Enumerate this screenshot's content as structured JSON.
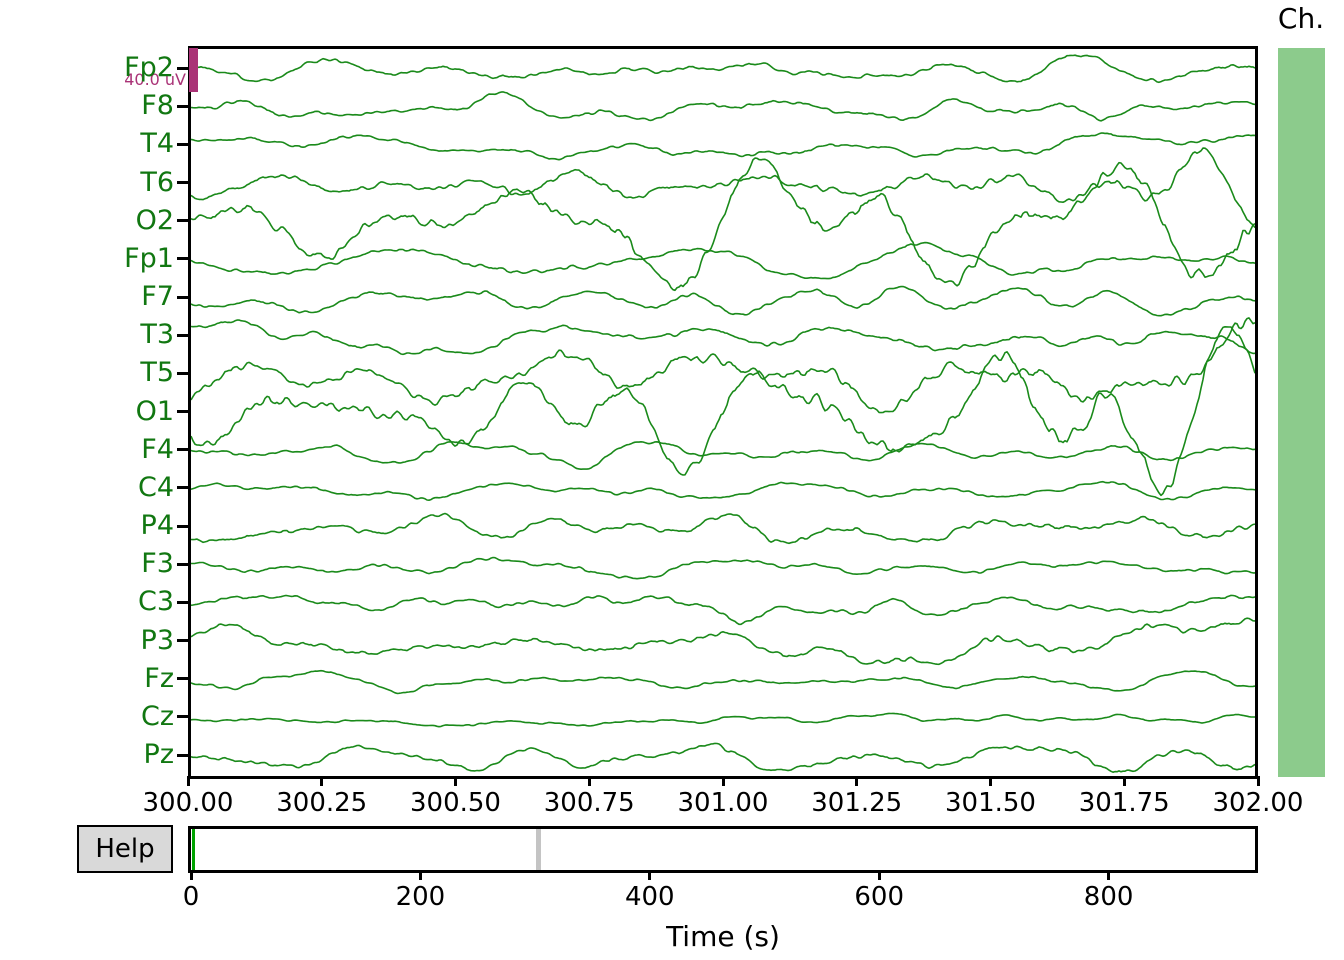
{
  "window": {
    "help_button_label": "Help",
    "channel_scrollbar_label": "Ch."
  },
  "scalebar": {
    "label": "40.0 uV",
    "color": "#AA3377"
  },
  "colors": {
    "trace": "#1a8a1a",
    "channel_label": "#117711",
    "axis": "#000000",
    "vscrollbar_fill": "#8ccb8c",
    "hscroll_marker": "#c4c4c4",
    "hscroll_position_line": "#00a300",
    "help_fill": "#d9d9d9"
  },
  "time_axis": {
    "tick_labels": [
      "300.00",
      "300.25",
      "300.50",
      "300.75",
      "301.00",
      "301.25",
      "301.50",
      "301.75",
      "302.00"
    ],
    "window_start_s": 300.0,
    "window_end_s": 302.0
  },
  "overview_axis": {
    "tick_labels": [
      "0",
      "200",
      "400",
      "600",
      "800"
    ],
    "tick_values": [
      0,
      200,
      400,
      600,
      800
    ],
    "xlabel": "Time (s)",
    "total_duration_s": 925,
    "marker_time_s": 301,
    "view_start_line_time_s": 0
  },
  "chart_data": {
    "type": "line",
    "title": "",
    "x_range_s": [
      300.0,
      302.0
    ],
    "sensitivity": "40.0 uV",
    "channels": [
      {
        "name": "Fp2",
        "amp": 9,
        "rhythm": 2,
        "rhythm_hz": 9,
        "swell": 0
      },
      {
        "name": "F8",
        "amp": 8,
        "rhythm": 2,
        "rhythm_hz": 9,
        "swell": 0
      },
      {
        "name": "T4",
        "amp": 7,
        "rhythm": 2,
        "rhythm_hz": 9,
        "swell": 0.3
      },
      {
        "name": "T6",
        "amp": 12,
        "rhythm": 7,
        "rhythm_hz": 3.6,
        "swell": 0.9
      },
      {
        "name": "O2",
        "amp": 22,
        "rhythm": 13,
        "rhythm_hz": 3.4,
        "swell": 0.9
      },
      {
        "name": "Fp1",
        "amp": 8,
        "rhythm": 2,
        "rhythm_hz": 9,
        "swell": 0
      },
      {
        "name": "F7",
        "amp": 9,
        "rhythm": 3,
        "rhythm_hz": 8,
        "swell": 0
      },
      {
        "name": "T3",
        "amp": 9,
        "rhythm": 3,
        "rhythm_hz": 8,
        "swell": 0.2
      },
      {
        "name": "T5",
        "amp": 18,
        "rhythm": 10,
        "rhythm_hz": 3.6,
        "swell": 0.8
      },
      {
        "name": "O1",
        "amp": 22,
        "rhythm": 13,
        "rhythm_hz": 3.3,
        "swell": 0.9
      },
      {
        "name": "F4",
        "amp": 7,
        "rhythm": 2,
        "rhythm_hz": 9,
        "swell": 0
      },
      {
        "name": "C4",
        "amp": 6,
        "rhythm": 2,
        "rhythm_hz": 9,
        "swell": 0
      },
      {
        "name": "P4",
        "amp": 10,
        "rhythm": 4,
        "rhythm_hz": 6,
        "swell": 0.3
      },
      {
        "name": "F3",
        "amp": 7,
        "rhythm": 2,
        "rhythm_hz": 9,
        "swell": 0
      },
      {
        "name": "C3",
        "amp": 8,
        "rhythm": 3,
        "rhythm_hz": 8,
        "swell": 0
      },
      {
        "name": "P3",
        "amp": 10,
        "rhythm": 4,
        "rhythm_hz": 6,
        "swell": 0.3
      },
      {
        "name": "Fz",
        "amp": 6,
        "rhythm": 2,
        "rhythm_hz": 9,
        "swell": 0
      },
      {
        "name": "Cz",
        "amp": 4,
        "rhythm": 1.5,
        "rhythm_hz": 9,
        "swell": 0
      },
      {
        "name": "Pz",
        "amp": 9,
        "rhythm": 4,
        "rhythm_hz": 6,
        "swell": 0.3
      }
    ],
    "seed": 1337
  }
}
